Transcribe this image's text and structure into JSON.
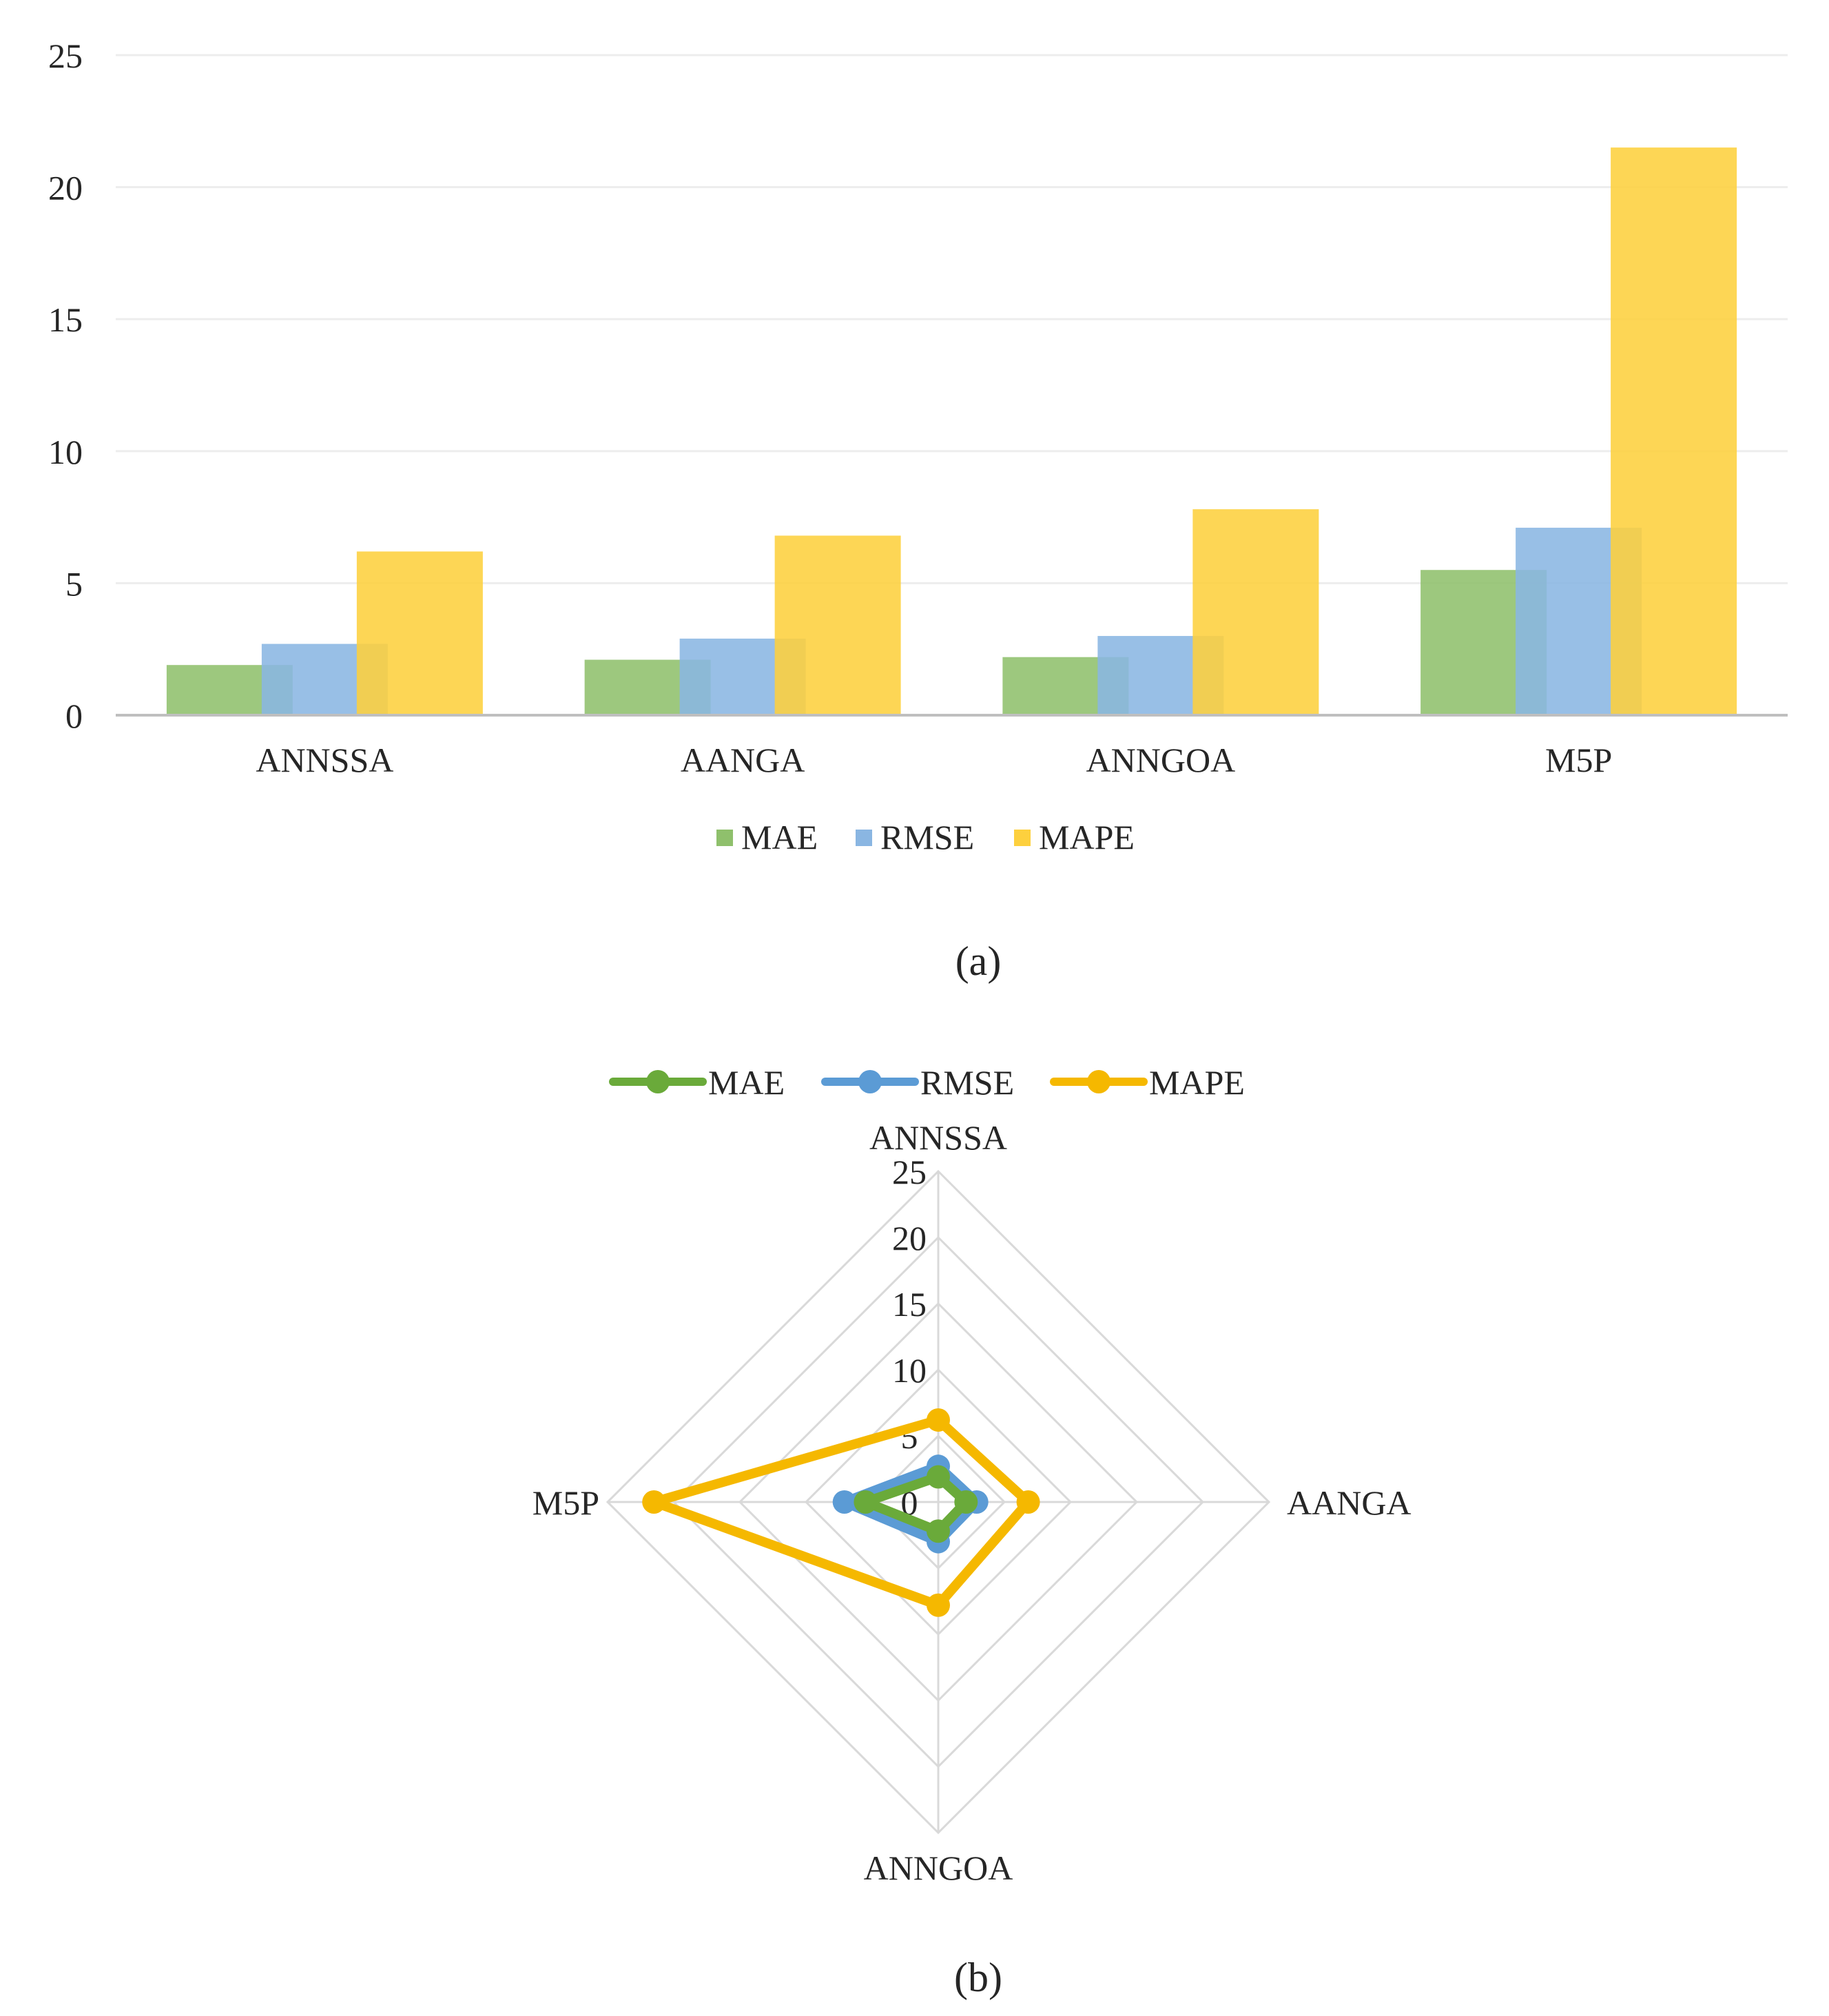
{
  "chart_data": [
    {
      "type": "bar",
      "caption": "(a)",
      "categories": [
        "ANNSSA",
        "AANGA",
        "ANNGOA",
        "M5P"
      ],
      "series": [
        {
          "name": "MAE",
          "values": [
            1.9,
            2.1,
            2.2,
            5.5
          ]
        },
        {
          "name": "RMSE",
          "values": [
            2.7,
            2.9,
            3.0,
            7.1
          ]
        },
        {
          "name": "MAPE",
          "values": [
            6.2,
            6.8,
            7.8,
            21.5
          ]
        }
      ],
      "yticks": [
        "0",
        "5",
        "10",
        "15",
        "20",
        "25"
      ],
      "ylim": [
        0,
        25
      ],
      "grid": true,
      "legend": "bottom",
      "colors": {
        "MAE": "#8fc06c",
        "RMSE": "#8ab6e2",
        "MAPE": "#fdd03e"
      }
    },
    {
      "type": "radar",
      "caption": "(b)",
      "categories": [
        "ANNSSA",
        "AANGA",
        "ANNGOA",
        "M5P"
      ],
      "series": [
        {
          "name": "MAE",
          "values": [
            1.9,
            2.1,
            2.2,
            5.5
          ]
        },
        {
          "name": "RMSE",
          "values": [
            2.7,
            2.9,
            3.0,
            7.1
          ]
        },
        {
          "name": "MAPE",
          "values": [
            6.2,
            6.8,
            7.8,
            21.5
          ]
        }
      ],
      "rticks": [
        "0",
        "5",
        "10",
        "15",
        "20",
        "25"
      ],
      "rlim": [
        0,
        25
      ],
      "legend": "top",
      "colors": {
        "MAE": "#6aaa3a",
        "RMSE": "#5b9bd5",
        "MAPE": "#f5b800"
      }
    }
  ]
}
